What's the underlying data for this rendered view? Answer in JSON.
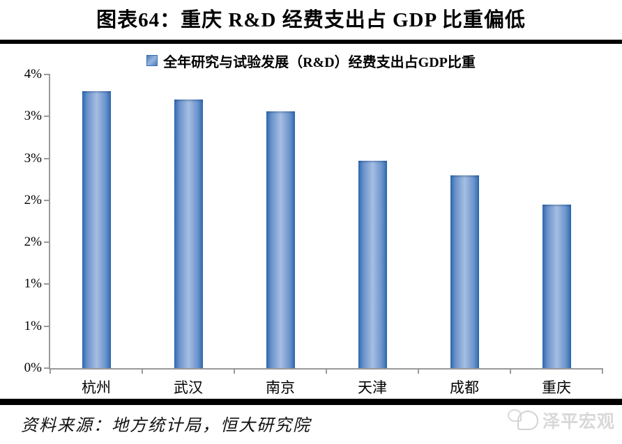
{
  "title": "图表64：重庆 R&D 经费支出占 GDP 比重偏低",
  "source_line": "资料来源：地方统计局，恒大研究院",
  "watermark_text": "泽平宏观",
  "colors": {
    "bar_edge": "#2d69b0",
    "bar_center": "#a6bee2",
    "axis": "#999999",
    "rule": "#000000",
    "watermark": "#d8d8d8"
  },
  "chart_data": {
    "type": "bar",
    "legend": "全年研究与试验发展（R&D）经费支出占GDP比重",
    "legend_position": "top",
    "grid": false,
    "categories": [
      "杭州",
      "武汉",
      "南京",
      "天津",
      "成都",
      "重庆"
    ],
    "values": [
      3.3,
      3.2,
      3.06,
      2.47,
      2.3,
      1.95
    ],
    "unit": "%",
    "ylim": [
      0,
      3.5
    ],
    "ytick_step": 0.5,
    "ytick_labels_bottom_to_top": [
      "0%",
      "1%",
      "1%",
      "2%",
      "2%",
      "3%",
      "3%",
      "4%"
    ]
  }
}
